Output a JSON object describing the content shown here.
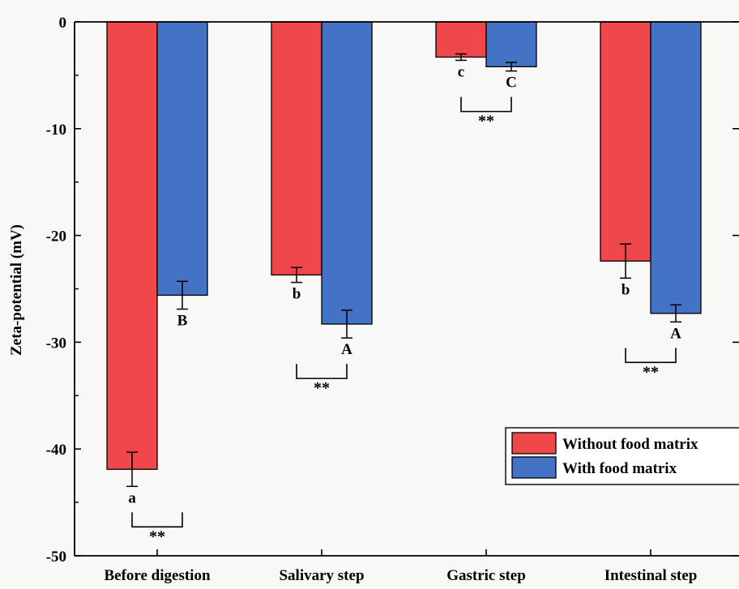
{
  "chart_data": {
    "type": "bar",
    "ylabel": "Zeta-potential (mV)",
    "xlabel": "",
    "ylim": [
      -50,
      0
    ],
    "yticks": [
      0,
      -10,
      -20,
      -30,
      -40,
      -50
    ],
    "categories": [
      "Before digestion",
      "Salivary step",
      "Gastric step",
      "Intestinal step"
    ],
    "series": [
      {
        "name": "Without food matrix",
        "color": "#f0474a",
        "values": [
          -41.9,
          -23.7,
          -3.3,
          -22.4
        ],
        "errors": [
          1.6,
          0.7,
          0.3,
          1.6
        ],
        "letters": [
          "a",
          "b",
          "c",
          "b"
        ]
      },
      {
        "name": "With food matrix",
        "color": "#4472c4",
        "values": [
          -25.6,
          -28.3,
          -4.2,
          -27.3
        ],
        "errors": [
          1.3,
          1.3,
          0.4,
          0.8
        ],
        "letters": [
          "B",
          "A",
          "C",
          "A"
        ]
      }
    ],
    "significance": [
      "**",
      "**",
      "**",
      "**"
    ],
    "legend_position": "lower-right"
  }
}
